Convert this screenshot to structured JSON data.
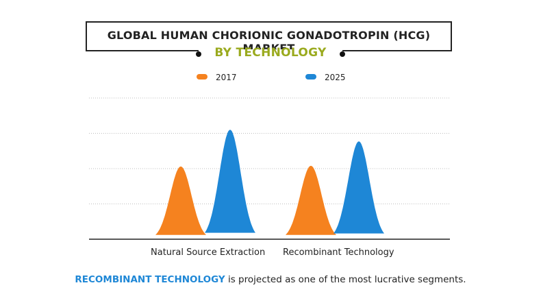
{
  "title": "GLOBAL HUMAN CHORIONIC GONADOTROPIN (HCG) MARKET",
  "subtitle": "BY TECHNOLOGY",
  "footer": {
    "highlight": "RECOMBINANT TECHNOLOGY",
    "text": " is projected as one of the most lucrative segments."
  },
  "colors": {
    "2017": "#f5821f",
    "2025": "#1e87d6",
    "subtitle": "#9aaa1e"
  },
  "chart_data": {
    "type": "area",
    "title": "GLOBAL HUMAN CHORIONIC GONADOTROPIN (HCG) MARKET",
    "subtitle": "BY TECHNOLOGY",
    "categories": [
      "Natural Source Extraction",
      "Recombinant Technology"
    ],
    "series": [
      {
        "name": "2017",
        "values": [
          2.06,
          2.08
        ]
      },
      {
        "name": "2025",
        "values": [
          3.1,
          2.77
        ]
      }
    ],
    "ylim": [
      0,
      4
    ],
    "grid": true,
    "legend": "top-center",
    "xlabel": "",
    "ylabel": ""
  }
}
